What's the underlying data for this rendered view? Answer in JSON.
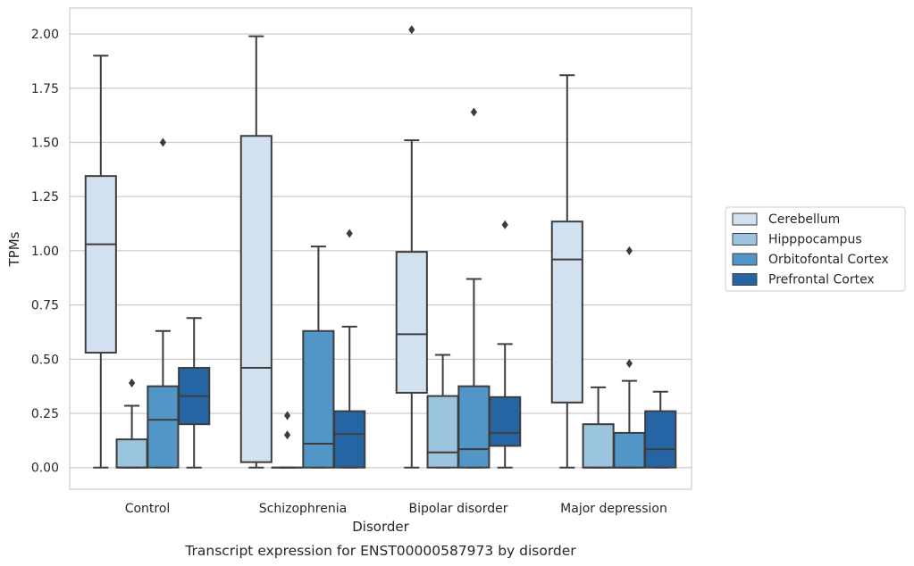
{
  "caption": "Transcript expression for ENST00000587973 by disorder",
  "chart_data": {
    "type": "box",
    "xlabel": "Disorder",
    "ylabel": "TPMs",
    "ylim": [
      -0.1,
      2.12
    ],
    "yticks": [
      0.0,
      0.25,
      0.5,
      0.75,
      1.0,
      1.25,
      1.5,
      1.75,
      2.0
    ],
    "ytick_labels": [
      "0.00",
      "0.25",
      "0.50",
      "0.75",
      "1.00",
      "1.25",
      "1.50",
      "1.75",
      "2.00"
    ],
    "grid": "horizontal",
    "legend_position": "right",
    "categories": [
      "Control",
      "Schizophrenia",
      "Bipolar disorder",
      "Major depression"
    ],
    "series": [
      {
        "name": "Cerebellum",
        "color": "#d1e1f0",
        "boxes": [
          {
            "whisker_low": 0.0,
            "q1": 0.53,
            "median": 1.03,
            "q3": 1.345,
            "whisker_high": 1.9,
            "outliers": []
          },
          {
            "whisker_low": 0.0,
            "q1": 0.025,
            "median": 0.46,
            "q3": 1.53,
            "whisker_high": 1.99,
            "outliers": []
          },
          {
            "whisker_low": 0.0,
            "q1": 0.345,
            "median": 0.615,
            "q3": 0.995,
            "whisker_high": 1.51,
            "outliers": [
              2.02
            ]
          },
          {
            "whisker_low": 0.0,
            "q1": 0.3,
            "median": 0.96,
            "q3": 1.135,
            "whisker_high": 1.81,
            "outliers": []
          }
        ]
      },
      {
        "name": "Hipppocampus",
        "color": "#9bc4de",
        "boxes": [
          {
            "whisker_low": 0.0,
            "q1": 0.0,
            "median": 0.0,
            "q3": 0.13,
            "whisker_high": 0.285,
            "outliers": [
              0.39
            ]
          },
          {
            "whisker_low": 0.0,
            "q1": 0.0,
            "median": 0.0,
            "q3": 0.0,
            "whisker_high": 0.0,
            "outliers": [
              0.15,
              0.24
            ]
          },
          {
            "whisker_low": 0.0,
            "q1": 0.0,
            "median": 0.07,
            "q3": 0.33,
            "whisker_high": 0.52,
            "outliers": []
          },
          {
            "whisker_low": 0.0,
            "q1": 0.0,
            "median": 0.0,
            "q3": 0.2,
            "whisker_high": 0.37,
            "outliers": []
          }
        ]
      },
      {
        "name": "Orbitofontal Cortex",
        "color": "#5196c6",
        "boxes": [
          {
            "whisker_low": 0.0,
            "q1": 0.0,
            "median": 0.22,
            "q3": 0.375,
            "whisker_high": 0.63,
            "outliers": [
              1.5
            ]
          },
          {
            "whisker_low": 0.0,
            "q1": 0.0,
            "median": 0.11,
            "q3": 0.63,
            "whisker_high": 1.02,
            "outliers": []
          },
          {
            "whisker_low": 0.0,
            "q1": 0.0,
            "median": 0.085,
            "q3": 0.375,
            "whisker_high": 0.87,
            "outliers": [
              1.64
            ]
          },
          {
            "whisker_low": 0.0,
            "q1": 0.0,
            "median": 0.0,
            "q3": 0.16,
            "whisker_high": 0.4,
            "outliers": [
              0.48,
              1.0
            ]
          }
        ]
      },
      {
        "name": "Prefrontal Cortex",
        "color": "#2665a4",
        "boxes": [
          {
            "whisker_low": 0.0,
            "q1": 0.2,
            "median": 0.33,
            "q3": 0.46,
            "whisker_high": 0.69,
            "outliers": []
          },
          {
            "whisker_low": 0.0,
            "q1": 0.0,
            "median": 0.155,
            "q3": 0.26,
            "whisker_high": 0.65,
            "outliers": [
              1.08
            ]
          },
          {
            "whisker_low": 0.0,
            "q1": 0.1,
            "median": 0.16,
            "q3": 0.325,
            "whisker_high": 0.57,
            "outliers": [
              1.12
            ]
          },
          {
            "whisker_low": 0.0,
            "q1": 0.0,
            "median": 0.085,
            "q3": 0.26,
            "whisker_high": 0.35,
            "outliers": []
          }
        ]
      }
    ]
  }
}
